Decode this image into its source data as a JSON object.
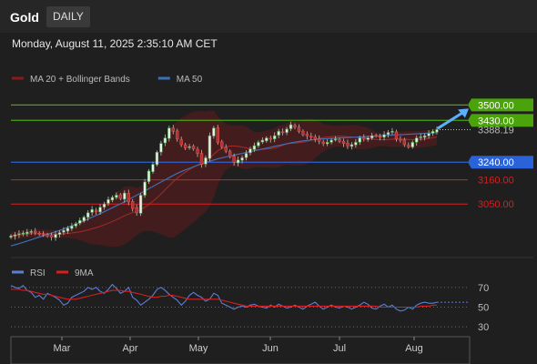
{
  "header": {
    "title": "Gold",
    "timeframe": "DAILY"
  },
  "datetime": "Monday, August 11, 2025 2:35:10 AM CET",
  "legend": {
    "price": [
      {
        "label": "MA 20 + Bollinger Bands",
        "color": "#8b1a1a"
      },
      {
        "label": "MA 50",
        "color": "#3d6fb5"
      }
    ],
    "rsi": [
      {
        "label": "RSI",
        "color": "#5b7fd6"
      },
      {
        "label": "9MA",
        "color": "#d61f1f"
      }
    ]
  },
  "chart_data": {
    "type": "candlestick",
    "x_ticks": [
      "Mar",
      "Apr",
      "May",
      "Jun",
      "Jul",
      "Aug"
    ],
    "price_ylim": [
      2840,
      3580
    ],
    "current_price": "3388.19",
    "levels": [
      {
        "label": "3500.00",
        "value": 3500,
        "color": "#4aa30b",
        "style": "box"
      },
      {
        "label": "3430.00",
        "value": 3430,
        "color": "#4aa30b",
        "style": "box"
      },
      {
        "label": "3240.00",
        "value": 3240,
        "color": "#2a62d9",
        "style": "box"
      },
      {
        "label": "3160.00",
        "value": 3160,
        "color": "#d62020",
        "style": "text"
      },
      {
        "label": "3050.00",
        "value": 3050,
        "color": "#d62020",
        "style": "text"
      }
    ],
    "closes": [
      2905,
      2910,
      2915,
      2918,
      2922,
      2925,
      2920,
      2915,
      2910,
      2905,
      2900,
      2912,
      2920,
      2930,
      2940,
      2950,
      2960,
      2975,
      2990,
      3010,
      3025,
      3015,
      3035,
      3050,
      3070,
      3080,
      3090,
      3075,
      3100,
      3060,
      3030,
      3010,
      3090,
      3150,
      3200,
      3230,
      3285,
      3325,
      3350,
      3395,
      3380,
      3345,
      3320,
      3305,
      3310,
      3300,
      3280,
      3230,
      3260,
      3360,
      3395,
      3330,
      3310,
      3290,
      3265,
      3240,
      3250,
      3260,
      3280,
      3300,
      3315,
      3330,
      3340,
      3350,
      3345,
      3360,
      3380,
      3375,
      3390,
      3410,
      3400,
      3380,
      3365,
      3360,
      3355,
      3345,
      3335,
      3325,
      3330,
      3340,
      3345,
      3335,
      3325,
      3315,
      3320,
      3330,
      3350,
      3345,
      3350,
      3360,
      3360,
      3355,
      3365,
      3375,
      3380,
      3345,
      3340,
      3320,
      3310,
      3330,
      3350,
      3355,
      3360,
      3370,
      3380,
      3388
    ],
    "ma50": [
      2860,
      2865,
      2870,
      2876,
      2882,
      2888,
      2894,
      2900,
      2906,
      2912,
      2918,
      2924,
      2930,
      2937,
      2944,
      2951,
      2958,
      2966,
      2974,
      2982,
      2990,
      2998,
      3006,
      3015,
      3024,
      3033,
      3042,
      3051,
      3060,
      3070,
      3080,
      3090,
      3100,
      3110,
      3120,
      3130,
      3140,
      3150,
      3160,
      3170,
      3180,
      3189,
      3197,
      3205,
      3212,
      3219,
      3226,
      3232,
      3238,
      3244,
      3250,
      3255,
      3260,
      3264,
      3268,
      3272,
      3276,
      3280,
      3284,
      3288,
      3292,
      3296,
      3300,
      3304,
      3308,
      3312,
      3316,
      3320,
      3324,
      3328,
      3331,
      3334,
      3337,
      3339,
      3341,
      3343,
      3345,
      3346,
      3347,
      3348,
      3349,
      3350,
      3351,
      3352,
      3353,
      3354,
      3355,
      3356,
      3357,
      3358,
      3359,
      3360,
      3361,
      3362,
      3363,
      3364,
      3365,
      3366,
      3367,
      3368,
      3369,
      3370,
      3371,
      3372,
      3373,
      3374
    ],
    "rsi_ylim": [
      20,
      80
    ],
    "rsi_levels": [
      70,
      50,
      30
    ],
    "rsi": [
      72,
      70,
      69,
      72,
      67,
      65,
      60,
      62,
      58,
      64,
      62,
      60,
      57,
      52,
      54,
      60,
      62,
      64,
      66,
      70,
      68,
      70,
      66,
      64,
      68,
      73,
      69,
      64,
      66,
      70,
      60,
      57,
      52,
      55,
      58,
      62,
      68,
      70,
      67,
      63,
      60,
      57,
      52,
      56,
      62,
      65,
      62,
      60,
      56,
      58,
      64,
      62,
      54,
      52,
      50,
      48,
      50,
      51,
      50,
      52,
      53,
      51,
      50,
      49,
      52,
      50,
      53,
      51,
      49,
      50,
      52,
      50,
      48,
      51,
      53,
      55,
      51,
      48,
      50,
      52,
      50,
      49,
      51,
      50,
      48,
      50,
      52,
      55,
      53,
      49,
      48,
      51,
      53,
      50,
      52,
      48,
      46,
      47,
      50,
      48,
      52,
      54,
      55,
      54,
      54,
      55
    ],
    "rsi_ma": [
      68,
      68,
      68,
      67,
      67,
      66,
      65,
      64,
      63,
      63,
      62,
      61,
      60,
      59,
      58,
      58,
      58,
      59,
      60,
      61,
      62,
      63,
      64,
      65,
      66,
      67,
      67,
      67,
      66,
      66,
      65,
      64,
      63,
      62,
      61,
      60,
      60,
      61,
      61,
      62,
      62,
      61,
      60,
      59,
      58,
      58,
      58,
      58,
      58,
      58,
      58,
      58,
      57,
      56,
      55,
      54,
      53,
      52,
      51,
      51,
      51,
      51,
      51,
      51,
      51,
      51,
      51,
      51,
      51,
      51,
      51,
      51,
      51,
      51,
      51,
      51,
      51,
      51,
      51,
      51,
      51,
      51,
      51,
      51,
      51,
      51,
      51,
      51,
      51,
      51,
      51,
      50,
      50,
      50,
      50,
      50,
      50,
      50,
      50,
      50,
      50,
      51,
      51,
      51,
      52,
      52
    ]
  }
}
